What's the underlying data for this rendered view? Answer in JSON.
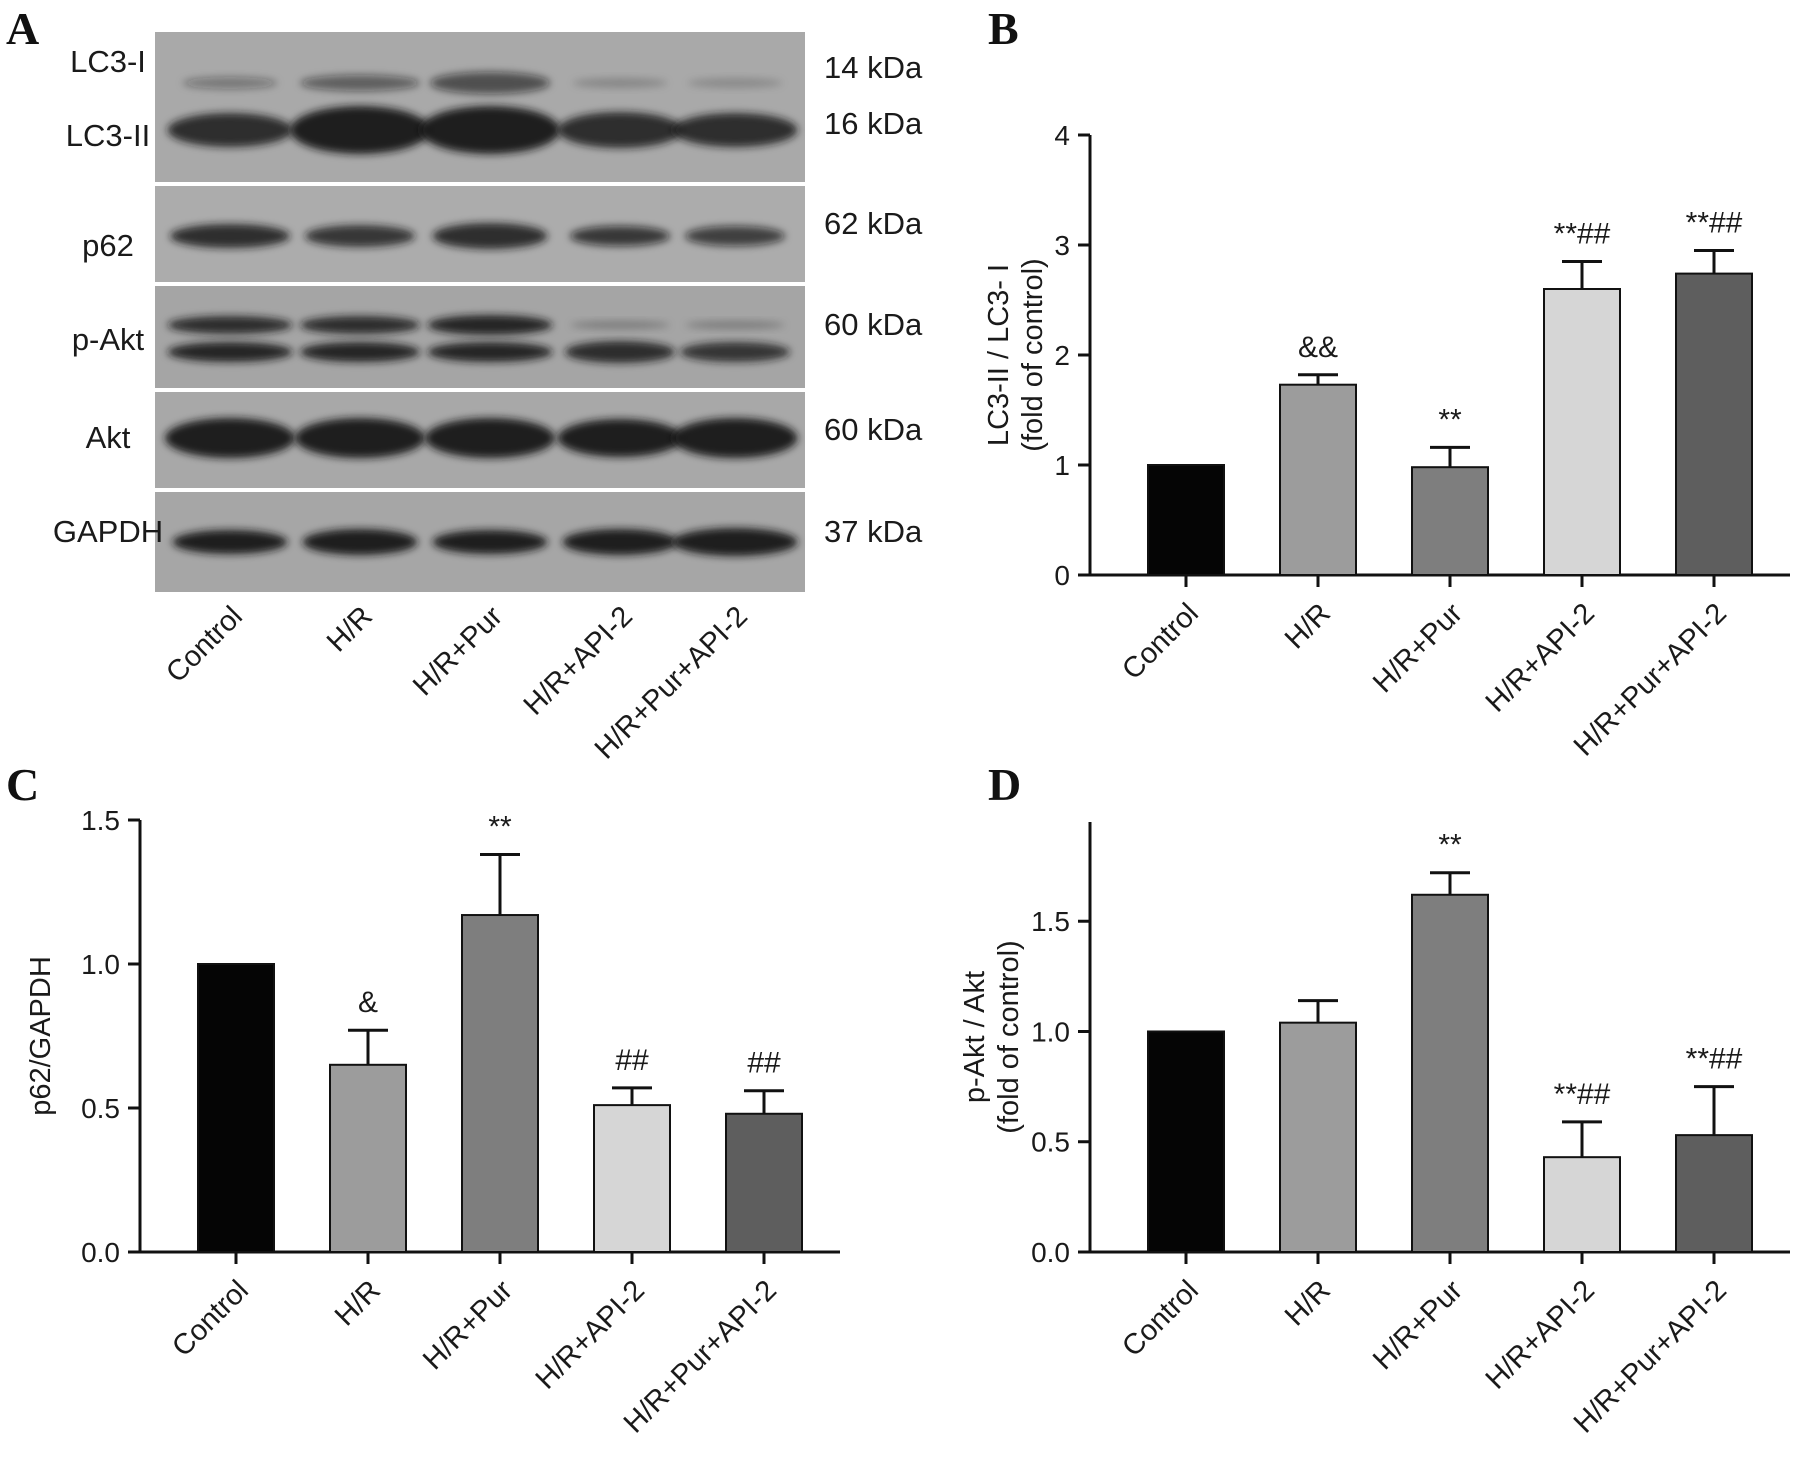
{
  "panel_labels": [
    "A",
    "B",
    "C",
    "D"
  ],
  "blot": {
    "bands": [
      {
        "protein": "LC3-I",
        "size": "14 kDa"
      },
      {
        "protein": "LC3-II",
        "size": "16 kDa"
      },
      {
        "protein": "p62",
        "size": "62 kDa"
      },
      {
        "protein": "p-Akt",
        "size": "60 kDa"
      },
      {
        "protein": "Akt",
        "size": "60 kDa"
      },
      {
        "protein": "GAPDH",
        "size": "37 kDa"
      }
    ],
    "lanes": [
      "Control",
      "H/R",
      "H/R+Pur",
      "H/R+API-2",
      "H/R+Pur+API-2"
    ]
  },
  "colors": {
    "Control": "#050505",
    "H/R": "#9c9c9c",
    "H/R+Pur": "#7e7e7e",
    "H/R+API-2": "#d6d6d6",
    "H/R+Pur+API-2": "#5e5e5e"
  },
  "chart_data": [
    {
      "panel": "B",
      "type": "bar",
      "categories": [
        "Control",
        "H/R",
        "H/R+Pur",
        "H/R+API-2",
        "H/R+Pur+API-2"
      ],
      "values": [
        1.0,
        1.73,
        0.98,
        2.6,
        2.74
      ],
      "errors": [
        0,
        0.09,
        0.18,
        0.25,
        0.21
      ],
      "annotations": [
        "",
        "&&",
        "**",
        "**##",
        "**##"
      ],
      "ylabel": [
        "LC3-II / LC3- I",
        "(fold of control)"
      ],
      "ylim": [
        0,
        4
      ],
      "yticks": [
        "0",
        "1",
        "2",
        "3",
        "4"
      ]
    },
    {
      "panel": "C",
      "type": "bar",
      "categories": [
        "Control",
        "H/R",
        "H/R+Pur",
        "H/R+API-2",
        "H/R+Pur+API-2"
      ],
      "values": [
        1.0,
        0.65,
        1.17,
        0.51,
        0.48
      ],
      "errors": [
        0,
        0.12,
        0.21,
        0.06,
        0.08
      ],
      "annotations": [
        "",
        "&",
        "**",
        "##",
        "##"
      ],
      "ylabel": [
        "p62/GAPDH"
      ],
      "ylim": [
        0,
        1.5
      ],
      "yticks": [
        "0.0",
        "0.5",
        "1.0",
        "1.5"
      ]
    },
    {
      "panel": "D",
      "type": "bar",
      "categories": [
        "Control",
        "H/R",
        "H/R+Pur",
        "H/R+API-2",
        "H/R+Pur+API-2"
      ],
      "values": [
        1.0,
        1.04,
        1.62,
        0.43,
        0.53
      ],
      "errors": [
        0,
        0.1,
        0.1,
        0.16,
        0.22
      ],
      "annotations": [
        "",
        "",
        "**",
        "**##",
        "**##"
      ],
      "ylabel": [
        "p-Akt / Akt",
        "(fold of control)"
      ],
      "ylim": [
        0,
        1.95
      ],
      "yticks": [
        "0.0",
        "0.5",
        "1.0",
        "1.5"
      ]
    }
  ]
}
